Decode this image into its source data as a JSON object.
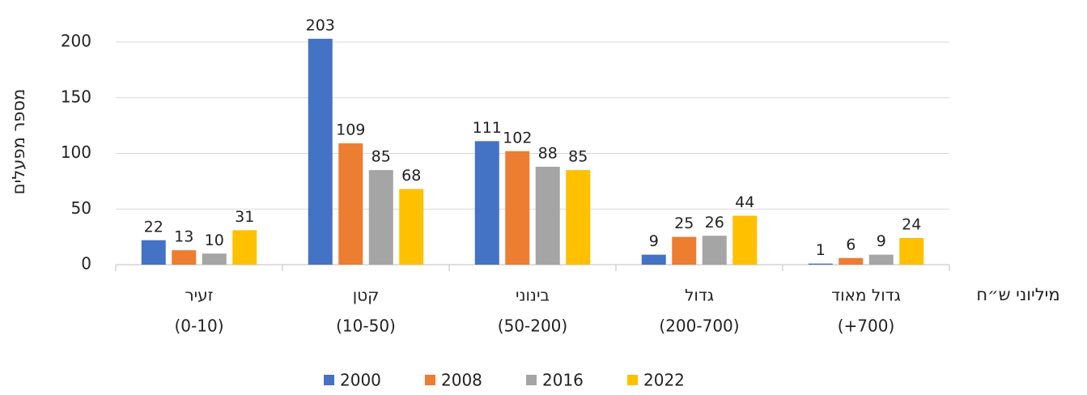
{
  "chart_data": {
    "type": "bar",
    "y_label": "מספר מפעלים",
    "x_label": "מיליוני ש״ח",
    "categories": [
      [
        "זעיר",
        "(0-10)"
      ],
      [
        "קטן",
        "(10-50)"
      ],
      [
        "בינוני",
        "(50-200)"
      ],
      [
        "גדול",
        "(200-700)"
      ],
      [
        "גדול מאוד",
        "(+700)"
      ]
    ],
    "series": [
      {
        "name": "2000",
        "color": "#4472c4",
        "values": [
          22,
          203,
          111,
          9,
          1
        ]
      },
      {
        "name": "2008",
        "color": "#ed7d31",
        "values": [
          13,
          109,
          102,
          25,
          6
        ]
      },
      {
        "name": "2016",
        "color": "#a5a5a5",
        "values": [
          10,
          85,
          88,
          26,
          9
        ]
      },
      {
        "name": "2022",
        "color": "#ffc000",
        "values": [
          31,
          68,
          85,
          44,
          24
        ]
      }
    ],
    "ylim": [
      0,
      200
    ],
    "yticks": [
      0,
      50,
      100,
      150,
      200
    ],
    "grid": true,
    "legend": "bottom"
  }
}
